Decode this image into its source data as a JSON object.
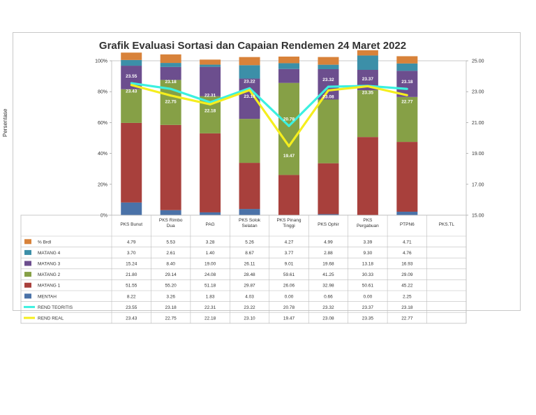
{
  "chart_data": {
    "type": "bar",
    "title": "Grafik Evaluasi Sortasi dan Capaian Rendemen 24 Maret 2022",
    "ylabel": "Persentase",
    "ylim": [
      0,
      100
    ],
    "y_ticks": [
      "0%",
      "20%",
      "40%",
      "60%",
      "80%",
      "100%"
    ],
    "y2lim": [
      15,
      25
    ],
    "y2_ticks": [
      "15.00",
      "17.00",
      "19.00",
      "21.00",
      "23.00",
      "25.00"
    ],
    "categories": [
      "PKS Bunut",
      "PKS Rimbo Dua",
      "PAG",
      "PKS Solok Selatan",
      "PKS Pinang Tinggi",
      "PKS Ophir",
      "PKS Pergabuan",
      "PTPN6",
      "PKS.TL"
    ],
    "stacked_series": [
      {
        "name": "MENTAH",
        "color": "#4a72a8",
        "values": [
          8.22,
          3.26,
          1.83,
          4.03,
          0.0,
          0.66,
          0.0,
          2.25,
          null
        ],
        "labels": [
          "8.22",
          "3.26",
          "1.83",
          "4.03",
          "0.00",
          "0.66",
          "0.00",
          "2.25",
          ""
        ]
      },
      {
        "name": "MATANG 1",
        "color": "#a8403c",
        "values": [
          51.55,
          55.2,
          51.18,
          29.87,
          26.06,
          32.98,
          50.61,
          45.22,
          null
        ],
        "labels": [
          "51.55",
          "55.20",
          "51.18",
          "29.87",
          "26.06",
          "32.98",
          "50.61",
          "45.22",
          ""
        ]
      },
      {
        "name": "MATANG 2",
        "color": "#86a046",
        "values": [
          21.8,
          29.14,
          24.08,
          28.48,
          59.61,
          41.25,
          30.33,
          29.09,
          null
        ],
        "labels": [
          "21.80",
          "29.14",
          "24.08",
          "28.48",
          "59.61",
          "41.25",
          "30.33",
          "29.09",
          ""
        ]
      },
      {
        "name": "MATANG 3",
        "color": "#6c4e8e",
        "values": [
          15.24,
          8.4,
          19.0,
          26.11,
          9.01,
          19.68,
          13.18,
          16.93,
          null
        ],
        "labels": [
          "15.24",
          "8.40",
          "19.00",
          "26.11",
          "9.01",
          "19.68",
          "13.18",
          "16.93",
          ""
        ]
      },
      {
        "name": "MATANG 4",
        "color": "#3c8fa8",
        "values": [
          3.7,
          2.61,
          1.4,
          8.67,
          3.77,
          2.88,
          9.3,
          4.76,
          null
        ],
        "labels": [
          "3.70",
          "2.61",
          "1.40",
          "8.67",
          "3.77",
          "2.88",
          "9.30",
          "4.76",
          ""
        ]
      },
      {
        "name": "% Brdl",
        "color": "#d8823a",
        "values": [
          4.79,
          5.53,
          3.28,
          5.26,
          4.27,
          4.99,
          3.39,
          4.71,
          null
        ],
        "labels": [
          "4.79",
          "5.53",
          "3.28",
          "5.26",
          "4.27",
          "4.99",
          "3.39",
          "4.71",
          ""
        ]
      }
    ],
    "line_series": [
      {
        "name": "REND TEORITIS",
        "color": "#3cf0e0",
        "values": [
          23.55,
          23.18,
          22.31,
          23.22,
          20.78,
          23.32,
          23.37,
          23.18,
          null
        ],
        "labels": [
          "23.55",
          "23.18",
          "22.31",
          "23.22",
          "20.78",
          "23.32",
          "23.37",
          "23.18",
          ""
        ]
      },
      {
        "name": "REND REAL",
        "color": "#f5ee1e",
        "values": [
          23.43,
          22.75,
          22.18,
          23.1,
          19.47,
          23.08,
          23.35,
          22.77,
          null
        ],
        "labels": [
          "23.43",
          "22.75",
          "22.18",
          "23.10",
          "19.47",
          "23.08",
          "23.35",
          "22.77",
          ""
        ]
      }
    ],
    "table_order": [
      "% Brdl",
      "MATANG 4",
      "MATANG 3",
      "MATANG 2",
      "MATANG 1",
      "MENTAH",
      "REND TEORITIS",
      "REND REAL"
    ],
    "grid": false,
    "legend": "table-left"
  }
}
